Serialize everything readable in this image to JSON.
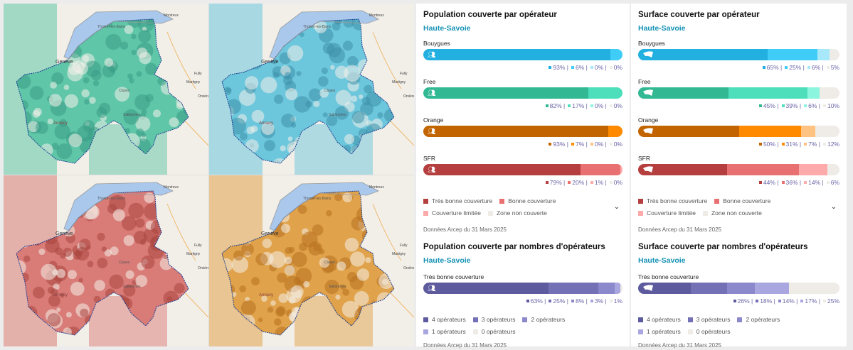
{
  "maps": [
    {
      "operator": "Bouygues",
      "color": "#5fc6a8",
      "dark": "#3a9d86"
    },
    {
      "operator": "Free",
      "color": "#6cc6dc",
      "dark": "#3e92aa"
    },
    {
      "operator": "SFR",
      "color": "#d97b77",
      "dark": "#a9453f"
    },
    {
      "operator": "Orange",
      "color": "#e0a24a",
      "dark": "#b87120"
    }
  ],
  "map_labels": {
    "geneve": "Genève",
    "montreux": "Montreux",
    "martigny": "Martigny",
    "annecy": "Annecy",
    "thonon": "Thonon-les-Bains",
    "cluses": "Cluses",
    "sallanches": "Sallanches",
    "fully": "Fully",
    "orsieres": "Orsières"
  },
  "panels": [
    {
      "title": "Population couverte par opérateur",
      "region": "Haute-Savoie",
      "icon": "people-icon",
      "operators": [
        {
          "name": "Bouygues",
          "values": [
            93,
            6,
            0,
            0
          ],
          "colors": [
            "#22b0e0",
            "#3fcdf7",
            "#a8e8fb",
            "#efebe6"
          ]
        },
        {
          "name": "Free",
          "values": [
            82,
            17,
            0,
            0
          ],
          "colors": [
            "#33b894",
            "#4ddfbc",
            "#8cf5de",
            "#efebe6"
          ]
        },
        {
          "name": "Orange",
          "values": [
            93,
            7,
            0,
            0
          ],
          "colors": [
            "#c26500",
            "#ff8a00",
            "#ffc280",
            "#efebe6"
          ]
        },
        {
          "name": "SFR",
          "values": [
            79,
            20,
            1,
            0
          ],
          "colors": [
            "#b53f3f",
            "#e87070",
            "#ffaaaa",
            "#efebe6"
          ]
        }
      ],
      "legend": [
        "Très bonne couverture",
        "Bonne couverture",
        "Couverture limitée",
        "Zone non couverte"
      ],
      "legend_colors": [
        "#b53f3f",
        "#e87070",
        "#ffaaaa",
        "#efebe6"
      ],
      "source": "Données Arcep du 31 Mars 2025",
      "title2": "Population couverte par nombres d'opérateurs",
      "region2": "Haute-Savoie",
      "level": "Très bonne couverture",
      "counts": {
        "values": [
          63,
          25,
          8,
          3,
          1
        ],
        "colors": [
          "#5d5a9e",
          "#7470b5",
          "#8c88cc",
          "#a9a6e0",
          "#efebe6"
        ]
      },
      "legend2": [
        "4 opérateurs",
        "3 opérateurs",
        "2 opérateurs",
        "1 opérateurs",
        "0 opérateurs"
      ],
      "source2": "Données Arcep du 31 Mars 2025"
    },
    {
      "title": "Surface couverte par opérateur",
      "region": "Haute-Savoie",
      "icon": "area-icon",
      "operators": [
        {
          "name": "Bouygues",
          "values": [
            65,
            25,
            6,
            5
          ],
          "colors": [
            "#22b0e0",
            "#3fcdf7",
            "#a8e8fb",
            "#efebe6"
          ]
        },
        {
          "name": "Free",
          "values": [
            45,
            39,
            6,
            10
          ],
          "colors": [
            "#33b894",
            "#4ddfbc",
            "#8cf5de",
            "#efebe6"
          ]
        },
        {
          "name": "Orange",
          "values": [
            50,
            31,
            7,
            12
          ],
          "colors": [
            "#c26500",
            "#ff8a00",
            "#ffc280",
            "#efebe6"
          ]
        },
        {
          "name": "SFR",
          "values": [
            44,
            36,
            14,
            6
          ],
          "colors": [
            "#b53f3f",
            "#e87070",
            "#ffaaaa",
            "#efebe6"
          ]
        }
      ],
      "legend": [
        "Très bonne couverture",
        "Bonne couverture",
        "Couverture limitée",
        "Zone non couverte"
      ],
      "legend_colors": [
        "#b53f3f",
        "#e87070",
        "#ffaaaa",
        "#efebe6"
      ],
      "source": "Données Arcep du 31 Mars 2025",
      "title2": "Surface couverte par nombres d'opérateurs",
      "region2": "Haute-Savoie",
      "level": "Très bonne couverture",
      "counts": {
        "values": [
          26,
          18,
          14,
          17,
          25
        ],
        "colors": [
          "#5d5a9e",
          "#7470b5",
          "#8c88cc",
          "#a9a6e0",
          "#efebe6"
        ]
      },
      "legend2": [
        "4 opérateurs",
        "3 opérateurs",
        "2 opérateurs",
        "1 opérateurs",
        "0 opérateurs"
      ],
      "source2": "Données Arcep du 31 Mars 2025"
    }
  ]
}
